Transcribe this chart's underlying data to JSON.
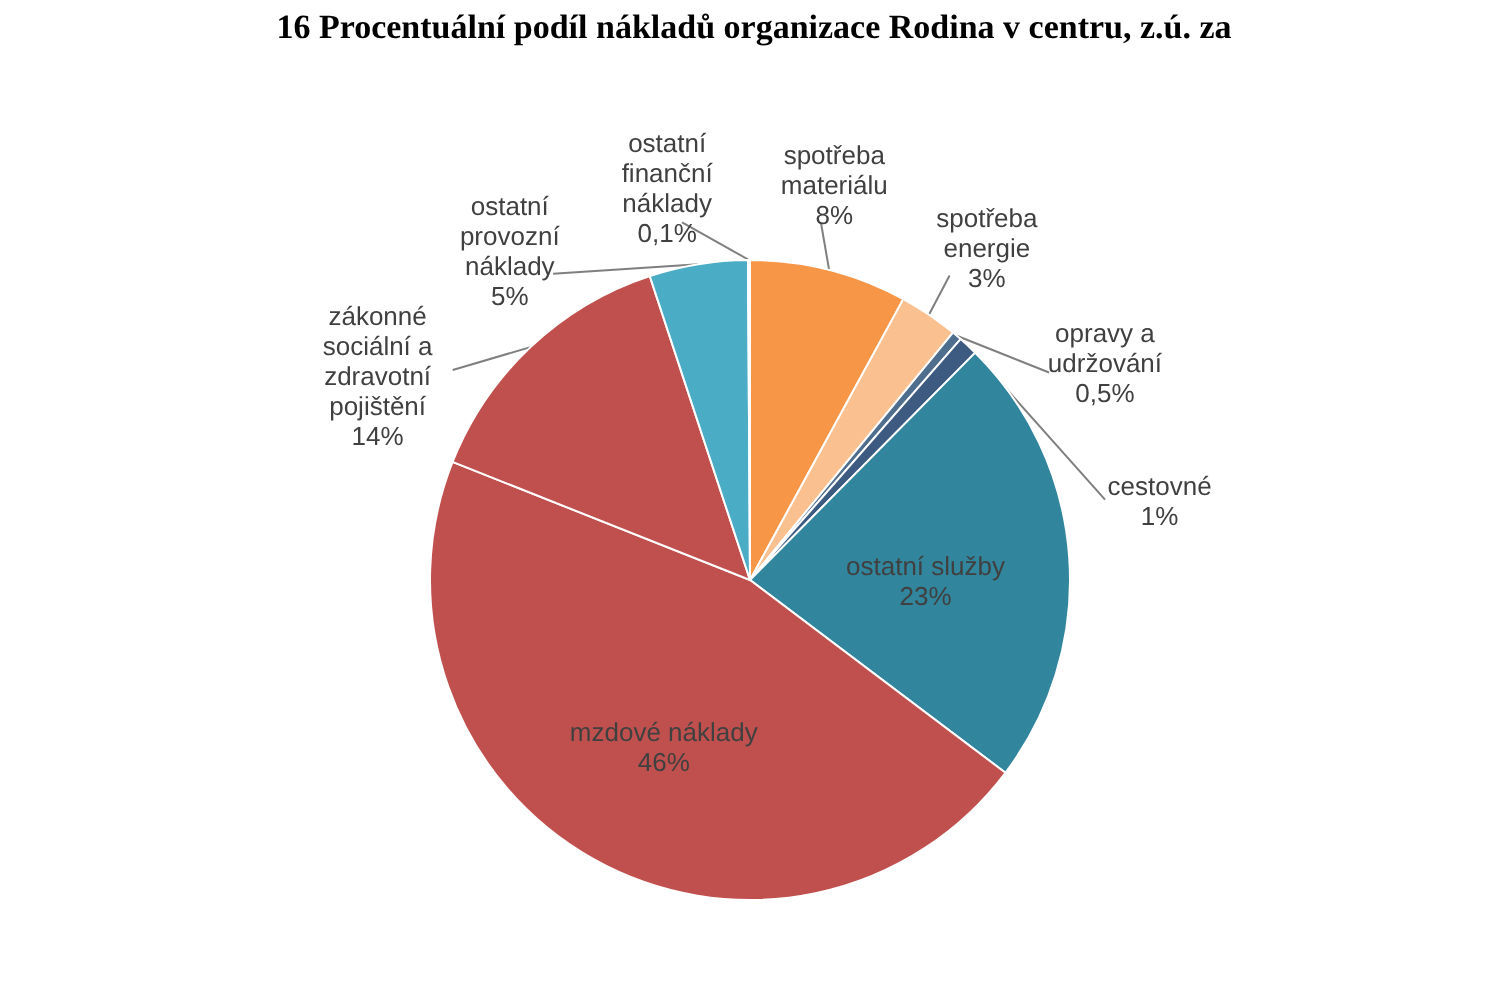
{
  "chart_data": {
    "type": "pie",
    "title": "16 Procentuální podíl nákladů organizace Rodina v centru, z.ú. za",
    "categories": [
      "spotřeba materiálu",
      "spotřeba energie",
      "opravy a udržování",
      "cestovné",
      "ostatní služby",
      "mzdové náklady",
      "zákonné sociální a zdravotní pojištění",
      "ostatní provozní náklady",
      "ostatní finanční náklady"
    ],
    "values": [
      8,
      3,
      0.5,
      1,
      23,
      46,
      14,
      5,
      0.1
    ],
    "value_labels": [
      "8%",
      "3%",
      "0,5%",
      "1%",
      "23%",
      "46%",
      "14%",
      "5%",
      "0,1%"
    ],
    "colors": [
      "#f79646",
      "#fac090",
      "#4f6d8c",
      "#3d5a80",
      "#31859c",
      "#c0504d",
      "#c0504d",
      "#4bacc6",
      "#8eb4e3"
    ]
  }
}
